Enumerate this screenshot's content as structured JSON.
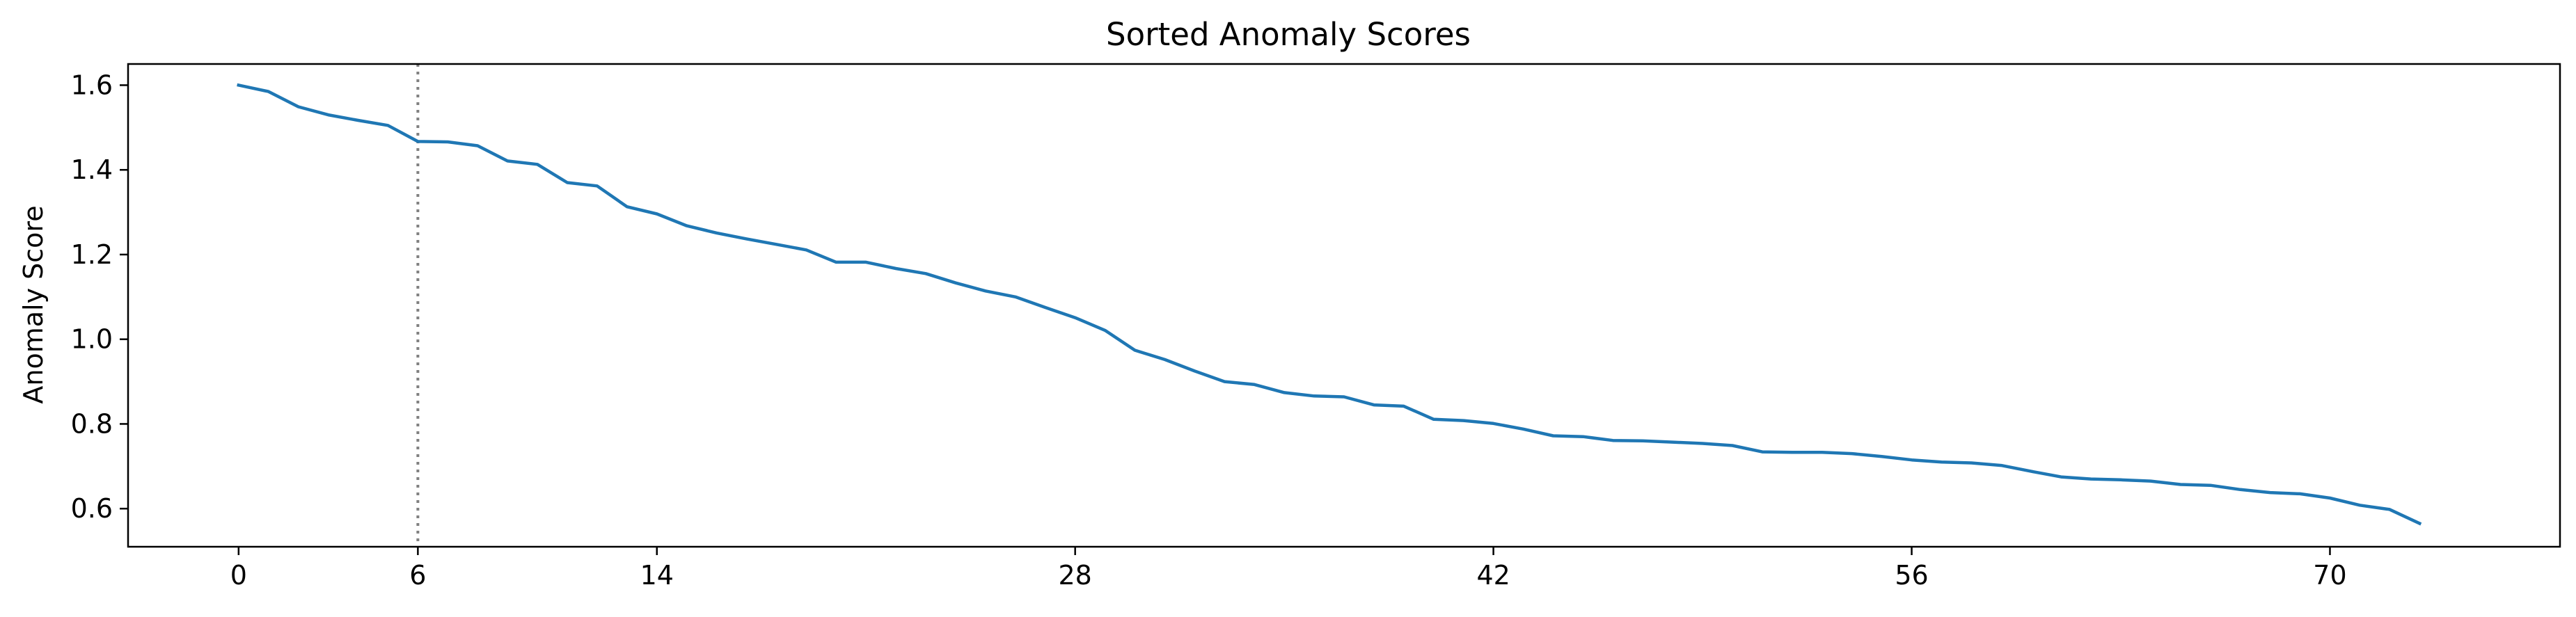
{
  "chart_data": {
    "type": "line",
    "title": "Sorted Anomaly Scores",
    "xlabel": "",
    "ylabel": "Anomaly Score",
    "xlim": [
      -3.7,
      77.7
    ],
    "ylim": [
      0.51,
      1.65
    ],
    "xticks": [
      0,
      6,
      14,
      28,
      42,
      56,
      70
    ],
    "xtick_labels": [
      "0",
      "6",
      "14",
      "28",
      "42",
      "56",
      "70"
    ],
    "yticks": [
      0.6,
      0.8,
      1.0,
      1.2,
      1.4,
      1.6
    ],
    "ytick_labels": [
      "0.6",
      "0.8",
      "1.0",
      "1.2",
      "1.4",
      "1.6"
    ],
    "grid": false,
    "vline": {
      "x": 6,
      "style": "dotted",
      "color": "#808080"
    },
    "series": [
      {
        "color": "#1f77b4",
        "x": [
          0,
          1,
          2,
          3,
          4,
          5,
          6,
          7,
          8,
          9,
          10,
          11,
          12,
          13,
          14,
          15,
          16,
          17,
          18,
          19,
          20,
          21,
          22,
          23,
          24,
          25,
          26,
          27,
          28,
          29,
          30,
          31,
          32,
          33,
          34,
          35,
          36,
          37,
          38,
          39,
          40,
          41,
          42,
          43,
          44,
          45,
          46,
          47,
          48,
          49,
          50,
          51,
          52,
          53,
          54,
          55,
          56,
          57,
          58,
          59,
          60,
          61,
          62,
          63,
          64,
          65,
          66,
          67,
          68,
          69,
          70,
          71,
          72,
          73
        ],
        "y": [
          1.6,
          1.585,
          1.549,
          1.53,
          1.517,
          1.505,
          1.467,
          1.466,
          1.457,
          1.421,
          1.413,
          1.37,
          1.362,
          1.313,
          1.296,
          1.268,
          1.251,
          1.237,
          1.224,
          1.211,
          1.182,
          1.182,
          1.167,
          1.155,
          1.133,
          1.114,
          1.1,
          1.075,
          1.051,
          1.021,
          0.974,
          0.952,
          0.925,
          0.9,
          0.893,
          0.874,
          0.866,
          0.864,
          0.845,
          0.842,
          0.811,
          0.808,
          0.801,
          0.788,
          0.772,
          0.77,
          0.761,
          0.76,
          0.757,
          0.754,
          0.749,
          0.734,
          0.733,
          0.733,
          0.73,
          0.723,
          0.715,
          0.71,
          0.708,
          0.702,
          0.688,
          0.675,
          0.67,
          0.668,
          0.665,
          0.657,
          0.655,
          0.645,
          0.638,
          0.635,
          0.625,
          0.608,
          0.598,
          0.565
        ]
      }
    ]
  }
}
